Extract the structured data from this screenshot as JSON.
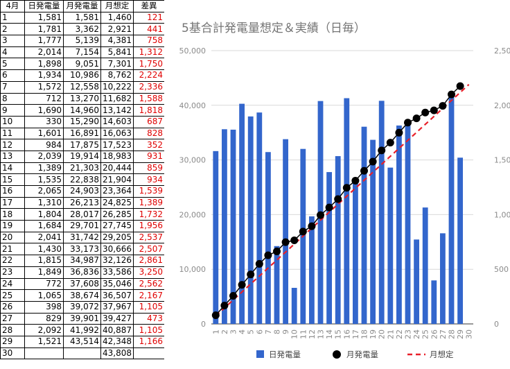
{
  "table": {
    "headers": [
      "4月",
      "日発電量",
      "月発電量",
      "月想定",
      "差異"
    ],
    "rows": [
      [
        "1",
        "1,581",
        "1,581",
        "1,460",
        "121"
      ],
      [
        "2",
        "1,781",
        "3,362",
        "2,921",
        "441"
      ],
      [
        "3",
        "1,777",
        "5,139",
        "4,381",
        "758"
      ],
      [
        "4",
        "2,014",
        "7,154",
        "5,841",
        "1,312"
      ],
      [
        "5",
        "1,898",
        "9,051",
        "7,301",
        "1,750"
      ],
      [
        "6",
        "1,934",
        "10,986",
        "8,762",
        "2,224"
      ],
      [
        "7",
        "1,572",
        "12,558",
        "10,222",
        "2,336"
      ],
      [
        "8",
        "712",
        "13,270",
        "11,682",
        "1,588"
      ],
      [
        "9",
        "1,690",
        "14,960",
        "13,142",
        "1,818"
      ],
      [
        "10",
        "330",
        "15,290",
        "14,603",
        "687"
      ],
      [
        "11",
        "1,601",
        "16,891",
        "16,063",
        "828"
      ],
      [
        "12",
        "984",
        "17,875",
        "17,523",
        "352"
      ],
      [
        "13",
        "2,039",
        "19,914",
        "18,983",
        "931"
      ],
      [
        "14",
        "1,389",
        "21,303",
        "20,444",
        "859"
      ],
      [
        "15",
        "1,535",
        "22,838",
        "21,904",
        "934"
      ],
      [
        "16",
        "2,065",
        "24,903",
        "23,364",
        "1,539"
      ],
      [
        "17",
        "1,310",
        "26,213",
        "24,825",
        "1,389"
      ],
      [
        "18",
        "1,804",
        "28,017",
        "26,285",
        "1,732"
      ],
      [
        "19",
        "1,684",
        "29,701",
        "27,745",
        "1,956"
      ],
      [
        "20",
        "2,041",
        "31,742",
        "29,205",
        "2,537"
      ],
      [
        "21",
        "1,430",
        "33,173",
        "30,666",
        "2,507"
      ],
      [
        "22",
        "1,815",
        "34,987",
        "32,126",
        "2,861"
      ],
      [
        "23",
        "1,849",
        "36,836",
        "33,586",
        "3,250"
      ],
      [
        "24",
        "772",
        "37,608",
        "35,046",
        "2,562"
      ],
      [
        "25",
        "1,065",
        "38,674",
        "36,507",
        "2,167"
      ],
      [
        "26",
        "398",
        "39,072",
        "37,967",
        "1,105"
      ],
      [
        "27",
        "829",
        "39,901",
        "39,427",
        "473"
      ],
      [
        "28",
        "2,092",
        "41,992",
        "40,887",
        "1,105"
      ],
      [
        "29",
        "1,521",
        "43,514",
        "42,348",
        "1,166"
      ],
      [
        "30",
        "",
        "",
        "43,808",
        ""
      ]
    ]
  },
  "colors": {
    "bar": "#3366cc",
    "cumulative": "#000000",
    "target": "#e8202a",
    "diff_text": "#e00000"
  },
  "chart_data": {
    "type": "bar",
    "title": "5基合計発電量想定＆実績（日毎）",
    "categories": [
      "1",
      "2",
      "3",
      "4",
      "5",
      "6",
      "7",
      "8",
      "9",
      "10",
      "11",
      "12",
      "13",
      "14",
      "15",
      "16",
      "17",
      "18",
      "19",
      "20",
      "21",
      "22",
      "23",
      "24",
      "25",
      "26",
      "27",
      "28",
      "29",
      "30"
    ],
    "left_axis": {
      "min": 0,
      "max": 50000,
      "ticks": [
        "0",
        "10,000",
        "20,000",
        "30,000",
        "40,000",
        "50,000"
      ]
    },
    "right_axis": {
      "min": 0,
      "max": 2500,
      "ticks": [
        "0",
        "500",
        "1,000",
        "1,500",
        "2,000",
        "2,500"
      ]
    },
    "grid": true,
    "legend_position": "bottom",
    "series": [
      {
        "name": "日発電量",
        "type": "bar",
        "axis": "right",
        "values": [
          1581,
          1781,
          1777,
          2014,
          1898,
          1934,
          1572,
          712,
          1690,
          330,
          1601,
          984,
          2039,
          1389,
          1535,
          2065,
          1310,
          1804,
          1684,
          2041,
          1430,
          1815,
          1849,
          772,
          1065,
          398,
          829,
          2092,
          1521,
          null
        ]
      },
      {
        "name": "月発電量",
        "type": "line-markers",
        "axis": "left",
        "values": [
          1581,
          3362,
          5139,
          7154,
          9051,
          10986,
          12558,
          13270,
          14960,
          15290,
          16891,
          17875,
          19914,
          21303,
          22838,
          24903,
          26213,
          28017,
          29701,
          31742,
          33173,
          34987,
          36836,
          37608,
          38674,
          39072,
          39901,
          41992,
          43514,
          null
        ]
      },
      {
        "name": "月想定",
        "type": "dashed-line",
        "axis": "left",
        "values": [
          1460,
          2921,
          4381,
          5841,
          7301,
          8762,
          10222,
          11682,
          13142,
          14603,
          16063,
          17523,
          18983,
          20444,
          21904,
          23364,
          24825,
          26285,
          27745,
          29205,
          30666,
          32126,
          33586,
          35046,
          36507,
          37967,
          39427,
          40887,
          42348,
          43808
        ]
      }
    ]
  }
}
